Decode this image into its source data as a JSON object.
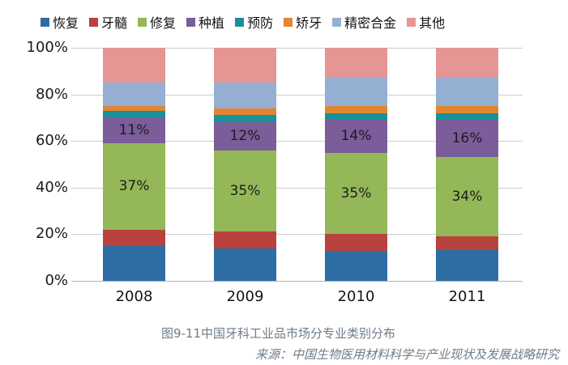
{
  "chart_data": {
    "type": "bar",
    "subtype": "stacked-100-percent",
    "title": "图9-11中国牙科工业品市场分专业类别分布",
    "source": "来源：中国生物医用材料科学与产业现状及发展战略研究",
    "categories": [
      "2008",
      "2009",
      "2010",
      "2011"
    ],
    "series": [
      {
        "name": "恢复",
        "color": "#2E6DA4",
        "values": [
          15,
          14,
          13,
          13
        ]
      },
      {
        "name": "牙髓",
        "color": "#B8423E",
        "values": [
          7,
          7,
          7,
          6
        ]
      },
      {
        "name": "修复",
        "color": "#94B857",
        "values": [
          37,
          35,
          35,
          34
        ],
        "labels": [
          "37%",
          "35%",
          "35%",
          "34%"
        ]
      },
      {
        "name": "种植",
        "color": "#7A5D99",
        "values": [
          11,
          12,
          14,
          16
        ],
        "labels": [
          "11%",
          "12%",
          "14%",
          "16%"
        ]
      },
      {
        "name": "预防",
        "color": "#17919B",
        "values": [
          3,
          3,
          3,
          3
        ]
      },
      {
        "name": "矫牙",
        "color": "#E2862F",
        "values": [
          2,
          3,
          3,
          3
        ]
      },
      {
        "name": "精密合金",
        "color": "#95AFD3",
        "values": [
          10,
          11,
          12,
          12
        ]
      },
      {
        "name": "其他",
        "color": "#E59694",
        "values": [
          15,
          15,
          13,
          13
        ]
      }
    ],
    "y_ticks": [
      "100%",
      "80%",
      "60%",
      "40%",
      "20%",
      "0%"
    ],
    "ylim": [
      0,
      100
    ],
    "grid": true,
    "legend_position": "top",
    "colors": {
      "gridline": "#cdcdcd",
      "axis_text": "#1a1a1a",
      "caption_text": "#6e7b87",
      "segment_label_text": "#1b1b22",
      "background": "#ffffff"
    }
  }
}
